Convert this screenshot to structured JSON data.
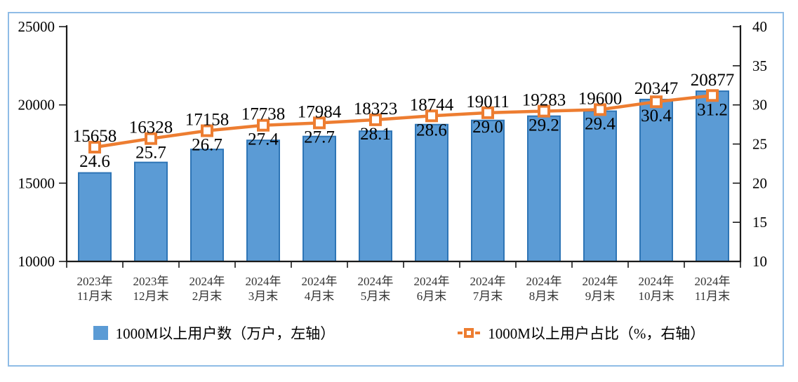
{
  "page": {
    "background": "#ffffff",
    "frame_border_color": "#8FBCE6"
  },
  "chart_data": {
    "type": "combo-bar-line",
    "title": "",
    "grid": false,
    "legend_position": "bottom",
    "categories": [
      [
        "2023年",
        "11月末"
      ],
      [
        "2023年",
        "12月末"
      ],
      [
        "2024年",
        "2月末"
      ],
      [
        "2024年",
        "3月末"
      ],
      [
        "2024年",
        "4月末"
      ],
      [
        "2024年",
        "5月末"
      ],
      [
        "2024年",
        "6月末"
      ],
      [
        "2024年",
        "7月末"
      ],
      [
        "2024年",
        "8月末"
      ],
      [
        "2024年",
        "9月末"
      ],
      [
        "2024年",
        "10月末"
      ],
      [
        "2024年",
        "11月末"
      ]
    ],
    "series": [
      {
        "name": "1000M以上用户数（万户，左轴）",
        "type": "bar",
        "axis": "left",
        "values": [
          15658,
          16328,
          17158,
          17738,
          17984,
          18323,
          18744,
          19011,
          19283,
          19600,
          20347,
          20877
        ],
        "fill": "#5B9BD5",
        "stroke": "#2E75B6"
      },
      {
        "name": "1000M以上用户占比（%，右轴）",
        "type": "line",
        "axis": "right",
        "values": [
          24.6,
          25.7,
          26.7,
          27.4,
          27.7,
          28.1,
          28.6,
          29.0,
          29.2,
          29.4,
          30.4,
          31.2
        ],
        "color": "#ED7D31",
        "marker": "hollow-square"
      }
    ],
    "axes": {
      "left": {
        "min": 10000,
        "max": 25000,
        "step": 5000,
        "ticks": [
          25000,
          20000,
          15000,
          10000
        ]
      },
      "right": {
        "min": 10,
        "max": 40,
        "step": 5,
        "ticks": [
          40,
          35,
          30,
          25,
          20,
          15,
          10
        ]
      }
    },
    "colors": {
      "axis_line": "#1a1a1a",
      "tick_label_text": "#000000",
      "data_label_text": "#000000",
      "xlabel_text": "#333333"
    }
  }
}
